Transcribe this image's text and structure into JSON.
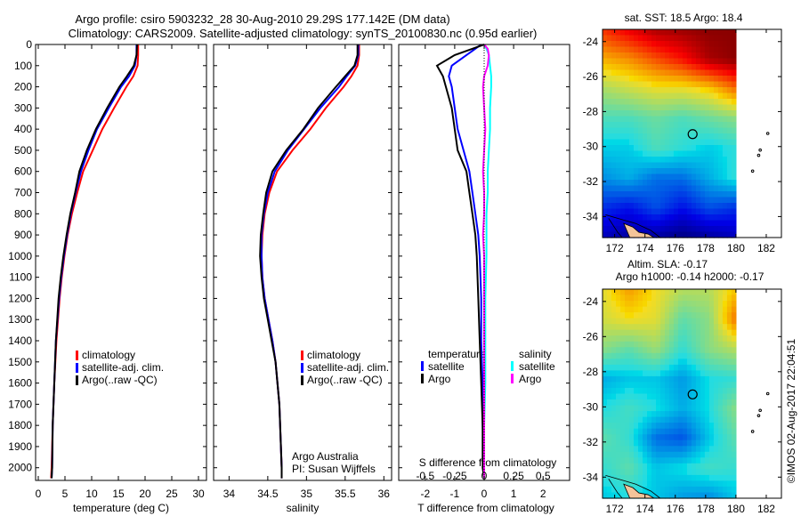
{
  "title": {
    "line1": "Argo profile: csiro 5903232_28 30-Aug-2010 29.29S 177.142E (DM data)",
    "line2": "Climatology: CARS2009. Satellite-adjusted climatology: synTS_20100830.nc (0.95d earlier)"
  },
  "colors": {
    "climatology": "#ff0000",
    "satellite": "#0000ff",
    "argo": "#000000",
    "s_satellite": "#00ffff",
    "s_argo": "#ff00ff",
    "land": "#f4c49a"
  },
  "chart_data": [
    {
      "type": "line",
      "id": "temperature",
      "xlabel": "temperature (deg C)",
      "ylabel": "",
      "xlim": [
        -0.5,
        31.5
      ],
      "ylim": [
        2060,
        0
      ],
      "xticks": [
        0,
        5,
        10,
        15,
        20,
        25,
        30
      ],
      "yticks": [
        0,
        100,
        200,
        300,
        400,
        500,
        600,
        700,
        800,
        900,
        1000,
        1100,
        1200,
        1300,
        1400,
        1500,
        1600,
        1700,
        1800,
        1900,
        2000
      ],
      "legend": [
        "climatology",
        "satellite-adj. clim.",
        "Argo(..raw -QC)"
      ],
      "depth": [
        0,
        50,
        100,
        150,
        200,
        300,
        400,
        500,
        600,
        700,
        800,
        900,
        1000,
        1100,
        1200,
        1400,
        1600,
        1800,
        2000,
        2050
      ],
      "series": [
        {
          "name": "climatology",
          "color": "#ff0000",
          "values": [
            18.7,
            18.7,
            18.6,
            17.8,
            16.5,
            14.2,
            12.0,
            10.2,
            8.4,
            7.3,
            6.3,
            5.5,
            4.9,
            4.4,
            4.0,
            3.4,
            3.0,
            2.7,
            2.5,
            2.4
          ]
        },
        {
          "name": "satellite-adj. clim.",
          "color": "#0000ff",
          "values": [
            18.4,
            18.4,
            18.1,
            17.0,
            15.5,
            13.2,
            11.0,
            9.4,
            8.0,
            7.0,
            6.1,
            5.4,
            4.8,
            4.3,
            3.9,
            3.3,
            3.0,
            2.7,
            2.6,
            2.5
          ]
        },
        {
          "name": "Argo(..raw -QC)",
          "color": "#000000",
          "values": [
            18.5,
            18.4,
            17.9,
            16.6,
            15.2,
            12.9,
            10.8,
            9.1,
            7.7,
            6.9,
            6.0,
            5.3,
            4.7,
            4.2,
            3.8,
            3.3,
            3.0,
            2.7,
            2.6,
            2.5
          ]
        }
      ]
    },
    {
      "type": "line",
      "id": "salinity",
      "xlabel": "salinity",
      "xlim": [
        33.8,
        36.1
      ],
      "ylim": [
        2060,
        0
      ],
      "xticks": [
        34,
        34.5,
        35,
        35.5,
        36
      ],
      "legend": [
        "climatology",
        "satellite-adj. clim.",
        "Argo(..raw -QC)"
      ],
      "annotation": [
        "Argo Australia",
        "PI: Susan Wijffels"
      ],
      "depth": [
        0,
        50,
        100,
        150,
        200,
        300,
        400,
        500,
        600,
        700,
        800,
        900,
        1000,
        1100,
        1200,
        1300,
        1400,
        1500,
        1700,
        2000,
        2050
      ],
      "series": [
        {
          "name": "climatology",
          "color": "#ff0000",
          "values": [
            35.68,
            35.68,
            35.66,
            35.58,
            35.48,
            35.25,
            35.05,
            34.82,
            34.62,
            34.52,
            34.46,
            34.43,
            34.42,
            34.43,
            34.46,
            34.51,
            34.56,
            34.6,
            34.65,
            34.68,
            34.68
          ]
        },
        {
          "name": "satellite-adj. clim.",
          "color": "#0000ff",
          "values": [
            35.67,
            35.67,
            35.63,
            35.52,
            35.42,
            35.18,
            34.97,
            34.76,
            34.59,
            34.5,
            34.45,
            34.42,
            34.42,
            34.43,
            34.46,
            34.51,
            34.56,
            34.6,
            34.65,
            34.68,
            34.68
          ]
        },
        {
          "name": "Argo(..raw -QC)",
          "color": "#000000",
          "values": [
            35.66,
            35.66,
            35.62,
            35.5,
            35.38,
            35.15,
            34.96,
            34.74,
            34.56,
            34.48,
            34.44,
            34.41,
            34.4,
            34.42,
            34.45,
            34.5,
            34.55,
            34.6,
            34.65,
            34.68,
            34.68
          ]
        }
      ]
    },
    {
      "type": "line",
      "id": "difference",
      "xlabel": "T difference from climatology",
      "xlabel2": "S difference from climatology",
      "xlim": [
        -2.9,
        2.9
      ],
      "xlim2": [
        -0.725,
        0.725
      ],
      "ylim": [
        2060,
        0
      ],
      "xticks": [
        -2,
        -1,
        0,
        1,
        2
      ],
      "xticks2": [
        -0.5,
        -0.25,
        0,
        0.25,
        0.5
      ],
      "legend": {
        "temperature_title": "temperature",
        "salinity_title": "salinity",
        "t_satellite": "satellite",
        "t_argo": "Argo",
        "s_satellite": "satellite",
        "s_argo": "Argo"
      },
      "depth": [
        0,
        20,
        50,
        100,
        150,
        200,
        300,
        400,
        500,
        600,
        700,
        800,
        900,
        1000,
        1200,
        1400,
        1600,
        1800,
        2000,
        2050
      ],
      "series": [
        {
          "name": "T satellite",
          "color": "#0000ff",
          "axis": "T",
          "values": [
            -0.1,
            -0.3,
            -0.6,
            -1.1,
            -1.2,
            -1.1,
            -1.0,
            -0.9,
            -0.7,
            -0.5,
            -0.4,
            -0.3,
            -0.2,
            -0.15,
            -0.1,
            -0.1,
            -0.05,
            -0.05,
            0,
            0
          ]
        },
        {
          "name": "T Argo",
          "color": "#000000",
          "axis": "T",
          "values": [
            0,
            -0.4,
            -1.0,
            -1.6,
            -1.4,
            -1.3,
            -1.1,
            -1.0,
            -0.9,
            -0.6,
            -0.5,
            -0.4,
            -0.3,
            -0.25,
            -0.2,
            -0.15,
            -0.1,
            -0.05,
            -0.05,
            0
          ]
        },
        {
          "name": "S satellite",
          "color": "#00ffff",
          "axis": "S",
          "values": [
            0,
            0.02,
            0.04,
            0.05,
            0.06,
            0.06,
            0.05,
            0.05,
            0.04,
            0.03,
            0.03,
            0.02,
            0.02,
            0.02,
            0.01,
            0.01,
            0.01,
            0.0,
            0.0,
            0.0
          ]
        },
        {
          "name": "S Argo",
          "color": "#ff00ff",
          "axis": "S",
          "values": [
            0,
            0.03,
            0.04,
            0.03,
            0.0,
            -0.01,
            0.0,
            0.01,
            0.0,
            -0.01,
            0.0,
            0.0,
            -0.01,
            0.0,
            0.0,
            0.0,
            0.0,
            0.0,
            0.0,
            0.0
          ]
        }
      ]
    },
    {
      "type": "heatmap",
      "id": "sst-map",
      "title": "sat. SST: 18.5  Argo: 18.4",
      "xlim": [
        171.2,
        183.0
      ],
      "ylim": [
        -35.2,
        -23.3
      ],
      "data_lon_max": 180.0,
      "xticks": [
        172,
        174,
        176,
        178,
        180,
        182
      ],
      "yticks": [
        -24,
        -26,
        -28,
        -30,
        -32,
        -34
      ],
      "clim": [
        17.2,
        20.0
      ],
      "lats": [
        -23.3,
        -25,
        -26.7,
        -28.4,
        -30.1,
        -31.8,
        -33.5,
        -35.2
      ],
      "lons": [
        171.2,
        173,
        174.8,
        176.6,
        178.4,
        180
      ],
      "values": [
        [
          19.5,
          19.7,
          19.9,
          19.95,
          20.0,
          20.0
        ],
        [
          19.1,
          19.2,
          19.4,
          19.6,
          19.9,
          20.0
        ],
        [
          18.7,
          18.8,
          18.9,
          18.9,
          19.0,
          19.3
        ],
        [
          18.4,
          18.4,
          18.5,
          18.4,
          18.5,
          18.6
        ],
        [
          18.2,
          18.2,
          18.4,
          18.3,
          18.2,
          18.3
        ],
        [
          18.0,
          18.1,
          17.9,
          17.9,
          18.1,
          18.3
        ],
        [
          17.7,
          17.6,
          17.8,
          17.6,
          17.8,
          17.7
        ],
        [
          17.4,
          17.3,
          17.3,
          17.2,
          17.3,
          17.4
        ]
      ],
      "argo_position": [
        177.142,
        -29.29
      ]
    },
    {
      "type": "heatmap",
      "id": "sla-map",
      "title": "Altim. SLA: -0.17",
      "subtitle": "Argo h1000: -0.14  h2000: -0.17",
      "xlim": [
        171.2,
        183.0
      ],
      "ylim": [
        -35.2,
        -23.3
      ],
      "data_lon_max": 180.0,
      "xticks": [
        172,
        174,
        176,
        178,
        180,
        182
      ],
      "yticks": [
        -24,
        -26,
        -28,
        -30,
        -32,
        -34
      ],
      "clim": [
        -0.5,
        0.5
      ],
      "lats": [
        -23.3,
        -25,
        -26.7,
        -28.4,
        -30.1,
        -31.8,
        -33.5,
        -35.2
      ],
      "lons": [
        171.2,
        173,
        174.8,
        176.6,
        178.4,
        180
      ],
      "values": [
        [
          0.1,
          0.2,
          0.12,
          0.05,
          0.05,
          0.15
        ],
        [
          0.08,
          0.12,
          0.1,
          -0.05,
          0.0,
          0.25
        ],
        [
          0.0,
          -0.05,
          0.02,
          -0.1,
          0.0,
          0.05
        ],
        [
          -0.18,
          -0.15,
          -0.15,
          -0.2,
          -0.12,
          -0.1
        ],
        [
          -0.12,
          -0.08,
          -0.12,
          -0.18,
          -0.12,
          0.0
        ],
        [
          -0.05,
          -0.1,
          -0.25,
          -0.28,
          -0.15,
          -0.05
        ],
        [
          -0.1,
          -0.05,
          -0.15,
          -0.12,
          -0.08,
          -0.1
        ],
        [
          -0.15,
          -0.12,
          -0.15,
          -0.2,
          -0.22,
          -0.15
        ]
      ],
      "argo_position": [
        177.142,
        -29.29
      ]
    }
  ],
  "copyright": "©IMOS 02-Aug-2017 22:04:51"
}
